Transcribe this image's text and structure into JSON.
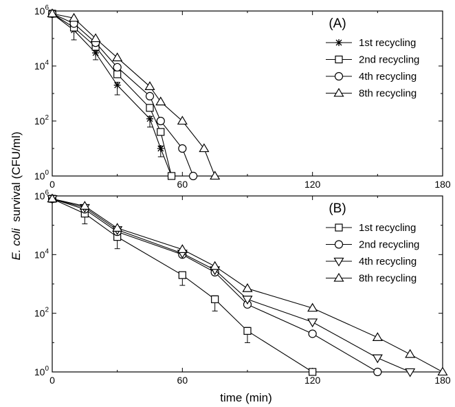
{
  "figure": {
    "ylabel_italic": "E. coli",
    "ylabel_rest": "survival (CFU/ml)",
    "xlabel": "time (min)"
  },
  "chart_data": [
    {
      "type": "line",
      "panel_label": "(A)",
      "xlim": [
        0,
        180
      ],
      "ylim": [
        1,
        1000000
      ],
      "yscale": "log",
      "xticks": [
        0,
        60,
        120,
        180
      ],
      "yticks": [
        1,
        100,
        10000,
        1000000
      ],
      "grid": false,
      "legend_position": "top-right",
      "series": [
        {
          "name": "1st recycling",
          "marker": "asterisk",
          "x": [
            0,
            10,
            20,
            30,
            45,
            50,
            55
          ],
          "y": [
            800000,
            200000,
            30000,
            2000,
            120,
            10,
            1
          ],
          "err": [
            0,
            0.35,
            0.25,
            0.35,
            0.3,
            0.3,
            0
          ]
        },
        {
          "name": "2nd recycling",
          "marker": "square",
          "x": [
            0,
            10,
            20,
            30,
            45,
            50,
            55
          ],
          "y": [
            800000,
            250000,
            50000,
            5000,
            300,
            40,
            1
          ],
          "err": [
            0,
            0,
            0,
            0,
            0,
            0,
            0
          ]
        },
        {
          "name": "4th recycling",
          "marker": "circle",
          "x": [
            0,
            10,
            20,
            30,
            45,
            50,
            60,
            65
          ],
          "y": [
            800000,
            350000,
            70000,
            9000,
            800,
            100,
            10,
            1
          ],
          "err": [
            0,
            0,
            0,
            0,
            0,
            0,
            0,
            0
          ]
        },
        {
          "name": "8th recycling",
          "marker": "triangle-up",
          "x": [
            0,
            10,
            20,
            30,
            45,
            50,
            60,
            70,
            75
          ],
          "y": [
            800000,
            550000,
            100000,
            20000,
            1800,
            500,
            100,
            10,
            1
          ],
          "err": [
            0,
            0,
            0,
            0,
            0,
            0,
            0,
            0,
            0
          ]
        }
      ]
    },
    {
      "type": "line",
      "panel_label": "(B)",
      "xlim": [
        0,
        180
      ],
      "ylim": [
        1,
        1000000
      ],
      "yscale": "log",
      "xticks": [
        0,
        60,
        120,
        180
      ],
      "yticks": [
        1,
        100,
        10000,
        1000000
      ],
      "grid": false,
      "legend_position": "top-right",
      "series": [
        {
          "name": "1st recycling",
          "marker": "square",
          "x": [
            0,
            15,
            30,
            60,
            75,
            90,
            120
          ],
          "y": [
            800000,
            250000,
            40000,
            2000,
            300,
            25,
            1
          ],
          "err": [
            0,
            0.35,
            0.4,
            0.35,
            0.4,
            0.4,
            0.2
          ]
        },
        {
          "name": "2nd recycling",
          "marker": "circle",
          "x": [
            0,
            15,
            30,
            60,
            75,
            90,
            120,
            150
          ],
          "y": [
            800000,
            350000,
            60000,
            10000,
            2500,
            200,
            20,
            1
          ],
          "err": [
            0,
            0,
            0,
            0,
            0,
            0,
            0,
            0
          ]
        },
        {
          "name": "4th recycling",
          "marker": "triangle-down",
          "x": [
            0,
            15,
            30,
            60,
            75,
            90,
            120,
            150,
            165
          ],
          "y": [
            800000,
            400000,
            70000,
            11000,
            3000,
            300,
            50,
            3,
            1
          ],
          "err": [
            0,
            0,
            0,
            0,
            0,
            0,
            0,
            0,
            0
          ]
        },
        {
          "name": "8th recycling",
          "marker": "triangle-up",
          "x": [
            0,
            15,
            30,
            60,
            75,
            90,
            120,
            150,
            165,
            180
          ],
          "y": [
            800000,
            450000,
            80000,
            15000,
            4000,
            700,
            150,
            15,
            4,
            1
          ],
          "err": [
            0,
            0,
            0,
            0,
            0,
            0,
            0,
            0,
            0,
            0
          ]
        }
      ]
    }
  ]
}
